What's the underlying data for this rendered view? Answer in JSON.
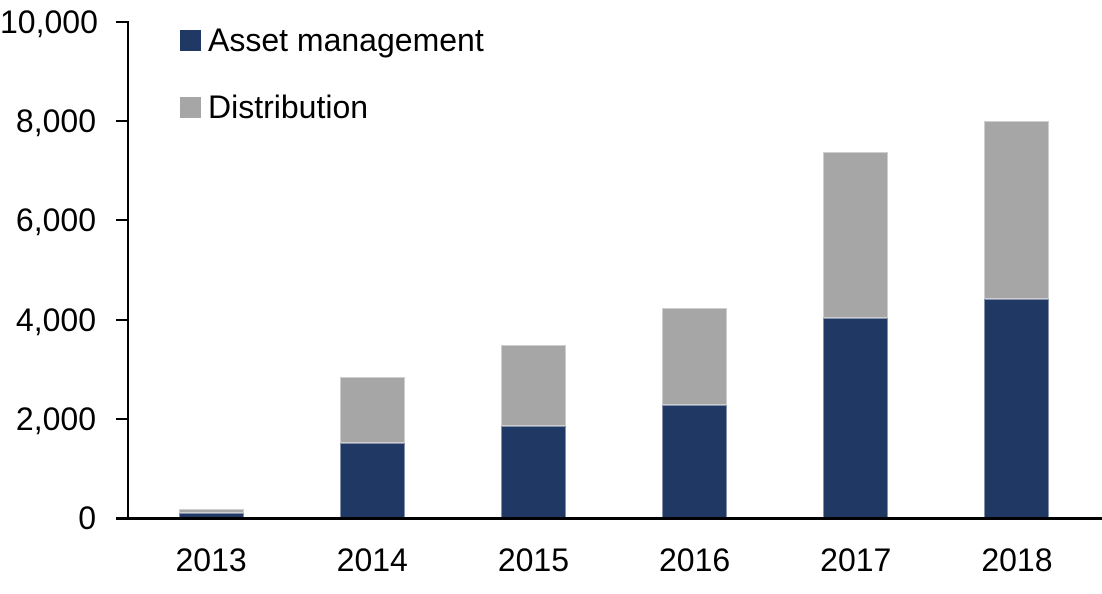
{
  "chart_data": {
    "type": "bar",
    "stacked": true,
    "title": "",
    "xlabel": "",
    "ylabel": "",
    "categories": [
      "2013",
      "2014",
      "2015",
      "2016",
      "2017",
      "2018"
    ],
    "series": [
      {
        "name": "Asset management",
        "color": "#1F3864",
        "values": [
          100,
          1510,
          1860,
          2280,
          4030,
          4420
        ]
      },
      {
        "name": "Distribution",
        "color": "#A6A6A6",
        "values": [
          80,
          1340,
          1630,
          1950,
          3350,
          3580
        ]
      }
    ],
    "totals": [
      180,
      2850,
      3490,
      4230,
      7380,
      8000
    ],
    "ylim": [
      0,
      10000
    ],
    "ytick_step": 2000,
    "ytick_labels": [
      "0",
      "2,000",
      "4,000",
      "6,000",
      "8,000",
      "10,000"
    ],
    "grid": false,
    "legend_position": "top-left",
    "axis_color": "#000000",
    "text_color": "#000000"
  }
}
